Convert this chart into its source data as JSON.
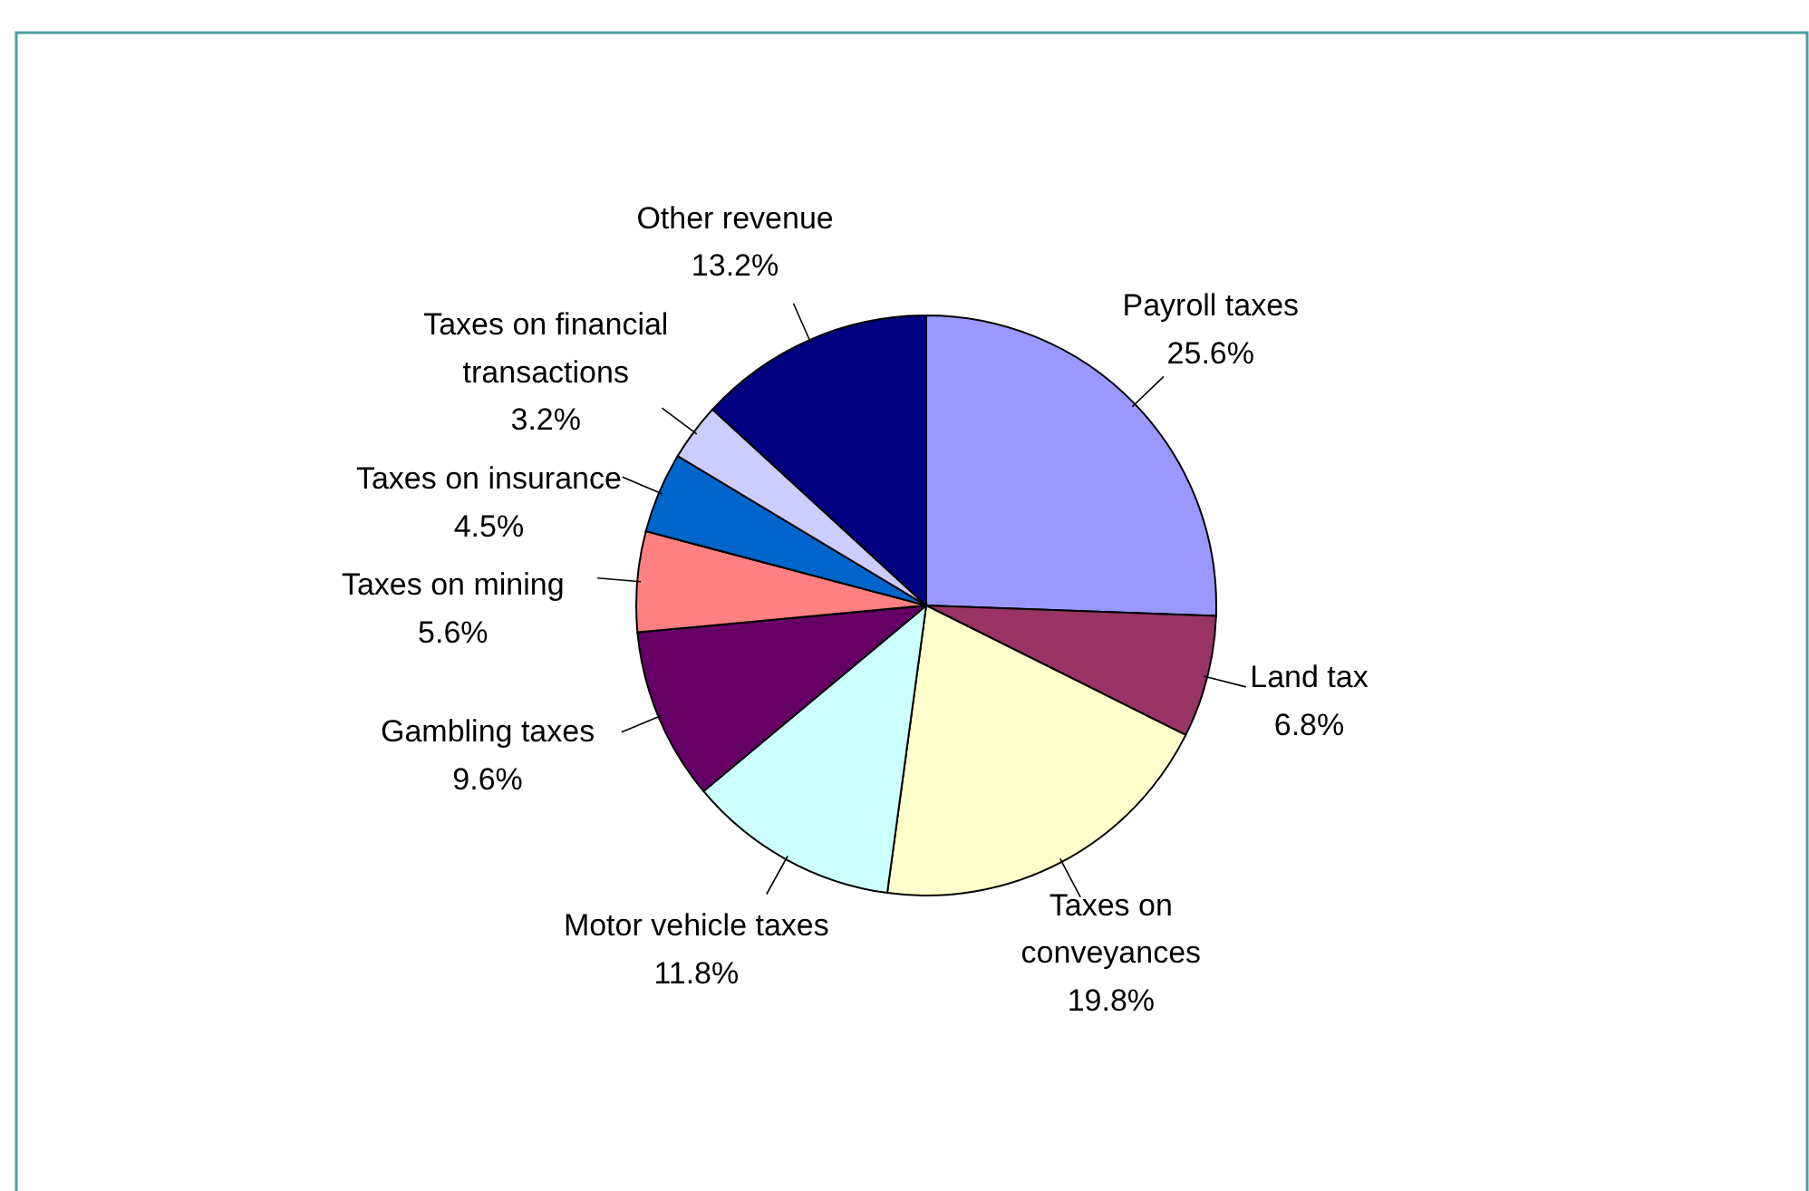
{
  "chart_data": {
    "type": "pie",
    "categories": [
      "Payroll taxes",
      "Land tax",
      "Taxes on conveyances",
      "Motor vehicle taxes",
      "Gambling taxes",
      "Taxes on mining",
      "Taxes on insurance",
      "Taxes on financial transactions",
      "Other revenue"
    ],
    "values": [
      25.6,
      6.8,
      19.8,
      11.8,
      9.6,
      5.6,
      4.5,
      3.2,
      13.2
    ],
    "value_labels": [
      "25.6%",
      "6.8%",
      "19.8%",
      "11.8%",
      "9.6%",
      "5.6%",
      "4.5%",
      "3.2%",
      "13.2%"
    ],
    "colors": [
      "#9999ff",
      "#993366",
      "#ffffcc",
      "#ccffff",
      "#660066",
      "#ff8080",
      "#0066cc",
      "#ccccff",
      "#000080"
    ]
  }
}
